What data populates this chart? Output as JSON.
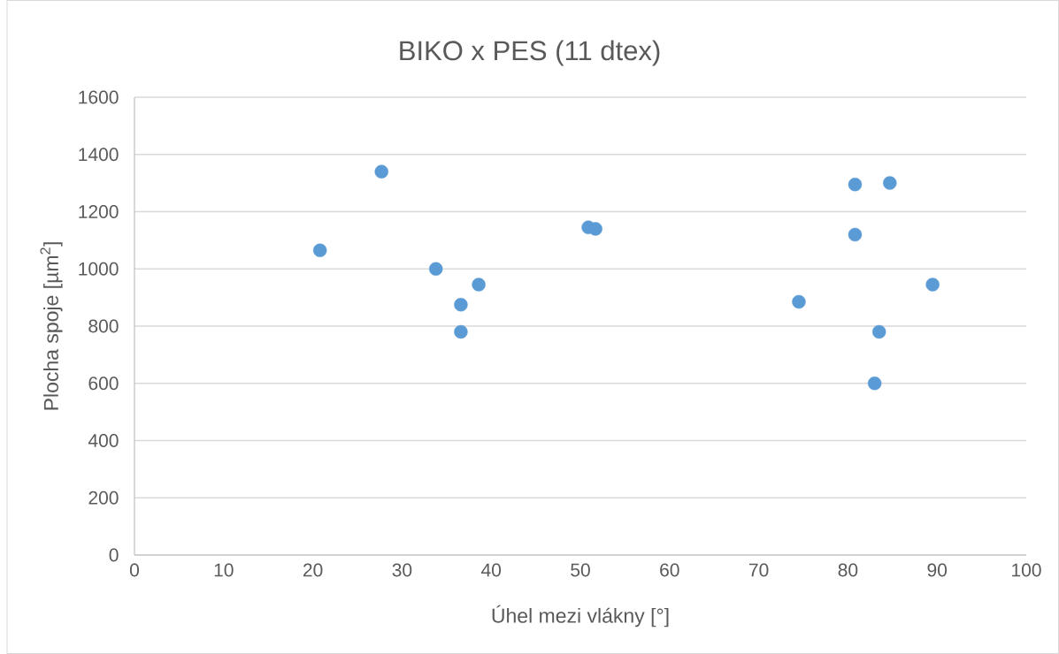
{
  "chart_data": {
    "type": "scatter",
    "title": "BIKO x PES (11 dtex)",
    "xlabel": "Úhel mezi vlákny [°]",
    "ylabel": "Plocha spoje [µm$^{2}$]",
    "x": [
      20.8,
      27.7,
      33.8,
      38.6,
      36.6,
      36.6,
      50.9,
      51.7,
      74.5,
      80.8,
      84.7,
      80.8,
      89.5,
      83.5,
      83.0
    ],
    "values": [
      1065,
      1340,
      1000,
      945,
      875,
      780,
      1145,
      1140,
      885,
      1295,
      1300,
      1120,
      945,
      780,
      600
    ],
    "color": "#5b9bd5",
    "marker": "circle",
    "grid": "y",
    "xlim": [
      0,
      100
    ],
    "xticks": [
      0,
      10,
      20,
      30,
      40,
      50,
      60,
      70,
      80,
      90,
      100
    ],
    "ylim": [
      0,
      1600
    ],
    "yticks": [
      0,
      200,
      400,
      600,
      800,
      1000,
      1200,
      1400,
      1600
    ]
  }
}
